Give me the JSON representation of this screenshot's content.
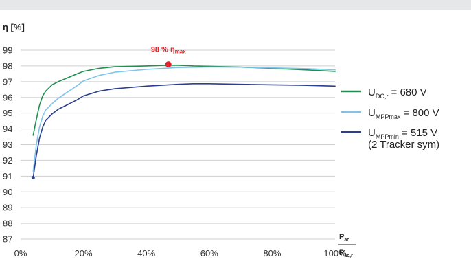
{
  "chart_data": {
    "type": "line",
    "y_title": "η [%]",
    "x_label": {
      "numerator": "P",
      "numerator_sub": "ac",
      "denominator": "P",
      "denominator_sub": "ac,r"
    },
    "ylim": [
      87,
      99
    ],
    "xlim": [
      0,
      100
    ],
    "y_ticks": [
      99,
      98,
      97,
      96,
      95,
      94,
      93,
      92,
      91,
      90,
      89,
      88,
      87
    ],
    "x_ticks": [
      {
        "value": 0,
        "label": "0%"
      },
      {
        "value": 20,
        "label": "20%"
      },
      {
        "value": 40,
        "label": "40%"
      },
      {
        "value": 60,
        "label": "60%"
      },
      {
        "value": 80,
        "label": "80%"
      },
      {
        "value": 100,
        "label": "100%"
      }
    ],
    "grid": "horizontal",
    "legend_position": "right",
    "series": [
      {
        "legend": {
          "prefix": "U",
          "sub": "DC,r",
          "suffix": " = 680 V"
        },
        "color": "#1e9150",
        "points": [
          [
            4,
            93.6
          ],
          [
            5,
            94.6
          ],
          [
            6,
            95.5
          ],
          [
            7,
            96.1
          ],
          [
            8,
            96.4
          ],
          [
            10,
            96.8
          ],
          [
            12,
            97.0
          ],
          [
            15,
            97.25
          ],
          [
            18,
            97.5
          ],
          [
            20,
            97.65
          ],
          [
            25,
            97.85
          ],
          [
            30,
            97.95
          ],
          [
            40,
            98.0
          ],
          [
            47,
            98.05
          ],
          [
            50,
            98.05
          ],
          [
            55,
            98.0
          ],
          [
            60,
            97.98
          ],
          [
            70,
            97.92
          ],
          [
            80,
            97.85
          ],
          [
            90,
            97.75
          ],
          [
            100,
            97.65
          ]
        ]
      },
      {
        "legend": {
          "prefix": "U",
          "sub": "MPPmax",
          "suffix": " = 800 V"
        },
        "color": "#7ec4ec",
        "points": [
          [
            4,
            91.3
          ],
          [
            5,
            93.0
          ],
          [
            6,
            94.1
          ],
          [
            7,
            94.8
          ],
          [
            8,
            95.2
          ],
          [
            10,
            95.6
          ],
          [
            12,
            95.95
          ],
          [
            15,
            96.35
          ],
          [
            18,
            96.75
          ],
          [
            20,
            97.05
          ],
          [
            25,
            97.4
          ],
          [
            30,
            97.6
          ],
          [
            40,
            97.78
          ],
          [
            50,
            97.9
          ],
          [
            60,
            97.93
          ],
          [
            70,
            97.92
          ],
          [
            80,
            97.88
          ],
          [
            90,
            97.83
          ],
          [
            100,
            97.75
          ]
        ]
      },
      {
        "legend": {
          "prefix": "U",
          "sub": "MPPmin",
          "suffix": " = 515 V",
          "note": "(2 Tracker sym)"
        },
        "color": "#2b3f8c",
        "points": [
          [
            4,
            90.9
          ],
          [
            5,
            92.3
          ],
          [
            6,
            93.4
          ],
          [
            7,
            94.1
          ],
          [
            8,
            94.55
          ],
          [
            10,
            94.95
          ],
          [
            12,
            95.25
          ],
          [
            15,
            95.55
          ],
          [
            18,
            95.85
          ],
          [
            20,
            96.1
          ],
          [
            25,
            96.4
          ],
          [
            30,
            96.55
          ],
          [
            40,
            96.72
          ],
          [
            50,
            96.83
          ],
          [
            55,
            96.87
          ],
          [
            60,
            96.87
          ],
          [
            70,
            96.83
          ],
          [
            80,
            96.8
          ],
          [
            90,
            96.77
          ],
          [
            100,
            96.72
          ]
        ]
      }
    ],
    "markers": [
      {
        "x": 4,
        "y": 90.9,
        "color": "#2b3f8c"
      },
      {
        "x": 47,
        "y": 98.1,
        "color": "#e2232a",
        "label": "98 % η",
        "label_sub": "max"
      }
    ]
  }
}
